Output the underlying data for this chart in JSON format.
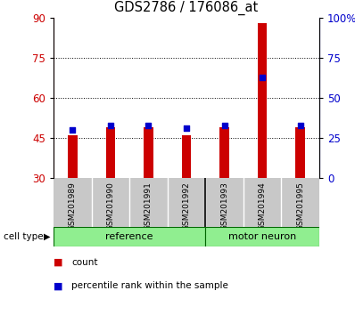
{
  "title": "GDS2786 / 176086_at",
  "samples": [
    "GSM201989",
    "GSM201990",
    "GSM201991",
    "GSM201992",
    "GSM201993",
    "GSM201994",
    "GSM201995"
  ],
  "count_values": [
    46,
    49,
    49,
    46,
    49,
    88,
    49
  ],
  "percentile_values": [
    30,
    33,
    33,
    31,
    33,
    63,
    33
  ],
  "group_labels": [
    "reference",
    "motor neuron"
  ],
  "group_colors": [
    "#90ee90",
    "#90ee90"
  ],
  "group_ref_count": 4,
  "group_mn_count": 3,
  "ylim_left": [
    30,
    90
  ],
  "ylim_right": [
    0,
    100
  ],
  "yticks_left": [
    30,
    45,
    60,
    75,
    90
  ],
  "yticks_right": [
    0,
    25,
    50,
    75,
    100
  ],
  "ytick_labels_right": [
    "0",
    "25",
    "50",
    "75",
    "100%"
  ],
  "bar_color": "#cc0000",
  "dot_color": "#0000cc",
  "cell_type_label": "cell type",
  "legend_count": "count",
  "legend_percentile": "percentile rank within the sample",
  "bar_width": 0.25,
  "left_color": "#cc0000",
  "right_color": "#0000cc",
  "tick_area_color": "#c8c8c8",
  "group_border_color": "#006600"
}
